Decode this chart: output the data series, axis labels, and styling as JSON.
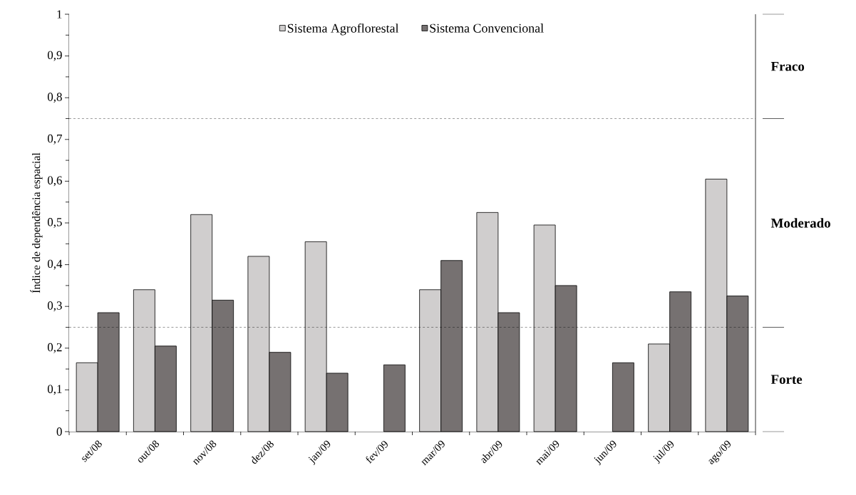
{
  "chart_data": {
    "type": "bar",
    "ylabel": "Índice de dependência espacial",
    "categories": [
      "set/08",
      "out/08",
      "nov/08",
      "dez/08",
      "jan/09",
      "fev/09",
      "mar/09",
      "abr/09",
      "mai/09",
      "jun/09",
      "jul/09",
      "ago/09"
    ],
    "series": [
      {
        "name": "Sistema Agroflorestal",
        "color": "#d0cece",
        "values": [
          0.165,
          0.34,
          0.52,
          0.42,
          0.455,
          null,
          0.34,
          0.525,
          0.495,
          null,
          0.21,
          0.605
        ]
      },
      {
        "name": "Sistema Convencional",
        "color": "#767171",
        "values": [
          0.285,
          0.205,
          0.315,
          0.19,
          0.14,
          0.16,
          0.41,
          0.285,
          0.35,
          0.165,
          0.335,
          0.325
        ]
      }
    ],
    "ylim": [
      0,
      1
    ],
    "yticks": [
      0,
      {
        "value": 0.1,
        "label": "0,1"
      },
      {
        "value": 0.2,
        "label": "0,2"
      },
      {
        "value": 0.3,
        "label": "0,3"
      },
      {
        "value": 0.4,
        "label": "0,4"
      },
      {
        "value": 0.5,
        "label": "0,5"
      },
      {
        "value": 0.6,
        "label": "0,6"
      },
      {
        "value": 0.7,
        "label": "0,7"
      },
      {
        "value": 0.8,
        "label": "0,8"
      },
      {
        "value": 0.9,
        "label": "0,9"
      },
      1
    ],
    "ref_lines": [
      {
        "axis": "y",
        "value": 0.25,
        "line_style": "dashed"
      },
      {
        "axis": "y",
        "value": 0.75,
        "line_style": "dashed"
      }
    ],
    "bands": [
      {
        "axis": "y",
        "from": 0,
        "to": 0.25,
        "label": "Forte",
        "color": "#ffffff"
      },
      {
        "axis": "y",
        "from": 0.25,
        "to": 0.75,
        "label": "Moderado",
        "color": "#ffffff"
      },
      {
        "axis": "y",
        "from": 0.75,
        "to": 1,
        "label": "Fraco",
        "color": "#ffffff"
      }
    ],
    "legend": "top",
    "grid": false
  }
}
